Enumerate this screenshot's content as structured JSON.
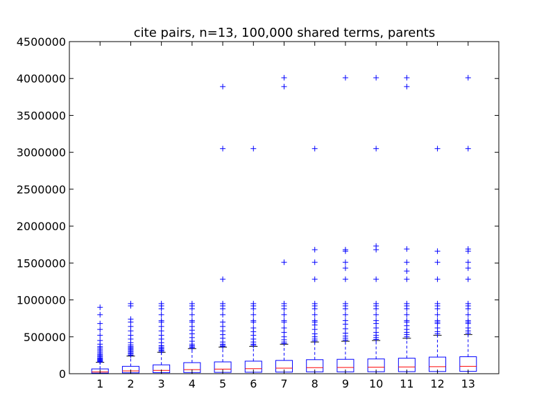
{
  "chart_data": {
    "type": "box",
    "title": "cite pairs, n=13, 100,000 shared terms, parents",
    "xlabel": "",
    "ylabel": "",
    "ylim": [
      0,
      4500000
    ],
    "yticks": [
      0,
      500000,
      1000000,
      1500000,
      2000000,
      2500000,
      3000000,
      3500000,
      4000000,
      4500000
    ],
    "ytick_labels": [
      "0",
      "500000",
      "1000000",
      "1500000",
      "2000000",
      "2500000",
      "3000000",
      "3500000",
      "4000000",
      "4500000"
    ],
    "categories": [
      "1",
      "2",
      "3",
      "4",
      "5",
      "6",
      "7",
      "8",
      "9",
      "10",
      "11",
      "12",
      "13"
    ],
    "grid": false,
    "colors": {
      "box": "#0000ff",
      "median": "#ff0000",
      "whisker": "#0000ff",
      "flier": "#0000ff"
    },
    "boxes": [
      {
        "category": "1",
        "whisker_low": 0,
        "q1": 8000,
        "median": 25000,
        "q3": 65000,
        "whisker_high": 155000,
        "fliers": [
          160000,
          170000,
          180000,
          190000,
          200000,
          210000,
          225000,
          240000,
          255000,
          270000,
          290000,
          310000,
          330000,
          350000,
          370000,
          400000,
          450000,
          520000,
          600000,
          680000,
          800000,
          900000
        ]
      },
      {
        "category": "2",
        "whisker_low": 0,
        "q1": 12000,
        "median": 38000,
        "q3": 100000,
        "whisker_high": 240000,
        "fliers": [
          250000,
          265000,
          280000,
          295000,
          310000,
          325000,
          340000,
          355000,
          370000,
          390000,
          420000,
          470000,
          520000,
          580000,
          640000,
          700000,
          740000,
          920000,
          950000
        ]
      },
      {
        "category": "3",
        "whisker_low": 0,
        "q1": 14000,
        "median": 45000,
        "q3": 120000,
        "whisker_high": 290000,
        "fliers": [
          300000,
          315000,
          330000,
          345000,
          360000,
          380000,
          420000,
          470000,
          520000,
          580000,
          640000,
          700000,
          720000,
          800000,
          880000,
          920000,
          950000
        ]
      },
      {
        "category": "4",
        "whisker_low": 0,
        "q1": 16000,
        "median": 55000,
        "q3": 150000,
        "whisker_high": 340000,
        "fliers": [
          350000,
          365000,
          380000,
          400000,
          440000,
          490000,
          540000,
          590000,
          640000,
          700000,
          720000,
          800000,
          880000,
          920000,
          950000
        ]
      },
      {
        "category": "5",
        "whisker_low": 0,
        "q1": 18000,
        "median": 62000,
        "q3": 160000,
        "whisker_high": 360000,
        "fliers": [
          370000,
          385000,
          400000,
          430000,
          480000,
          530000,
          580000,
          640000,
          700000,
          800000,
          880000,
          920000,
          950000,
          1280000,
          3050000,
          3890000
        ]
      },
      {
        "category": "6",
        "whisker_low": 0,
        "q1": 20000,
        "median": 68000,
        "q3": 170000,
        "whisker_high": 370000,
        "fliers": [
          385000,
          400000,
          430000,
          470000,
          520000,
          570000,
          620000,
          700000,
          720000,
          800000,
          880000,
          920000,
          950000,
          3050000
        ]
      },
      {
        "category": "7",
        "whisker_low": 0,
        "q1": 22000,
        "median": 75000,
        "q3": 180000,
        "whisker_high": 400000,
        "fliers": [
          410000,
          430000,
          460000,
          500000,
          560000,
          620000,
          700000,
          720000,
          800000,
          880000,
          920000,
          950000,
          1510000,
          3890000,
          4010000
        ]
      },
      {
        "category": "8",
        "whisker_low": 0,
        "q1": 25000,
        "median": 82000,
        "q3": 190000,
        "whisker_high": 430000,
        "fliers": [
          445000,
          470000,
          500000,
          540000,
          600000,
          660000,
          700000,
          720000,
          800000,
          880000,
          920000,
          950000,
          1280000,
          1510000,
          1680000,
          3050000
        ]
      },
      {
        "category": "9",
        "whisker_low": 0,
        "q1": 25000,
        "median": 85000,
        "q3": 195000,
        "whisker_high": 440000,
        "fliers": [
          455000,
          480000,
          510000,
          550000,
          610000,
          670000,
          720000,
          800000,
          880000,
          920000,
          950000,
          1280000,
          1430000,
          1510000,
          1660000,
          1680000,
          4010000
        ]
      },
      {
        "category": "10",
        "whisker_low": 0,
        "q1": 27000,
        "median": 88000,
        "q3": 200000,
        "whisker_high": 450000,
        "fliers": [
          465000,
          490000,
          520000,
          560000,
          620000,
          680000,
          720000,
          800000,
          880000,
          920000,
          950000,
          1280000,
          1680000,
          1730000,
          3050000,
          4010000
        ]
      },
      {
        "category": "11",
        "whisker_low": 0,
        "q1": 28000,
        "median": 92000,
        "q3": 210000,
        "whisker_high": 480000,
        "fliers": [
          500000,
          530000,
          560000,
          600000,
          650000,
          700000,
          720000,
          800000,
          880000,
          920000,
          950000,
          1280000,
          1390000,
          1510000,
          1690000,
          3890000,
          4010000
        ]
      },
      {
        "category": "12",
        "whisker_low": 0,
        "q1": 30000,
        "median": 95000,
        "q3": 225000,
        "whisker_high": 520000,
        "fliers": [
          540000,
          570000,
          620000,
          680000,
          700000,
          720000,
          800000,
          880000,
          920000,
          950000,
          1280000,
          1510000,
          1660000,
          3050000
        ]
      },
      {
        "category": "13",
        "whisker_low": 0,
        "q1": 32000,
        "median": 100000,
        "q3": 230000,
        "whisker_high": 530000,
        "fliers": [
          550000,
          580000,
          620000,
          680000,
          700000,
          720000,
          800000,
          880000,
          920000,
          950000,
          1280000,
          1430000,
          1510000,
          1660000,
          1690000,
          3050000,
          4010000
        ]
      }
    ]
  }
}
